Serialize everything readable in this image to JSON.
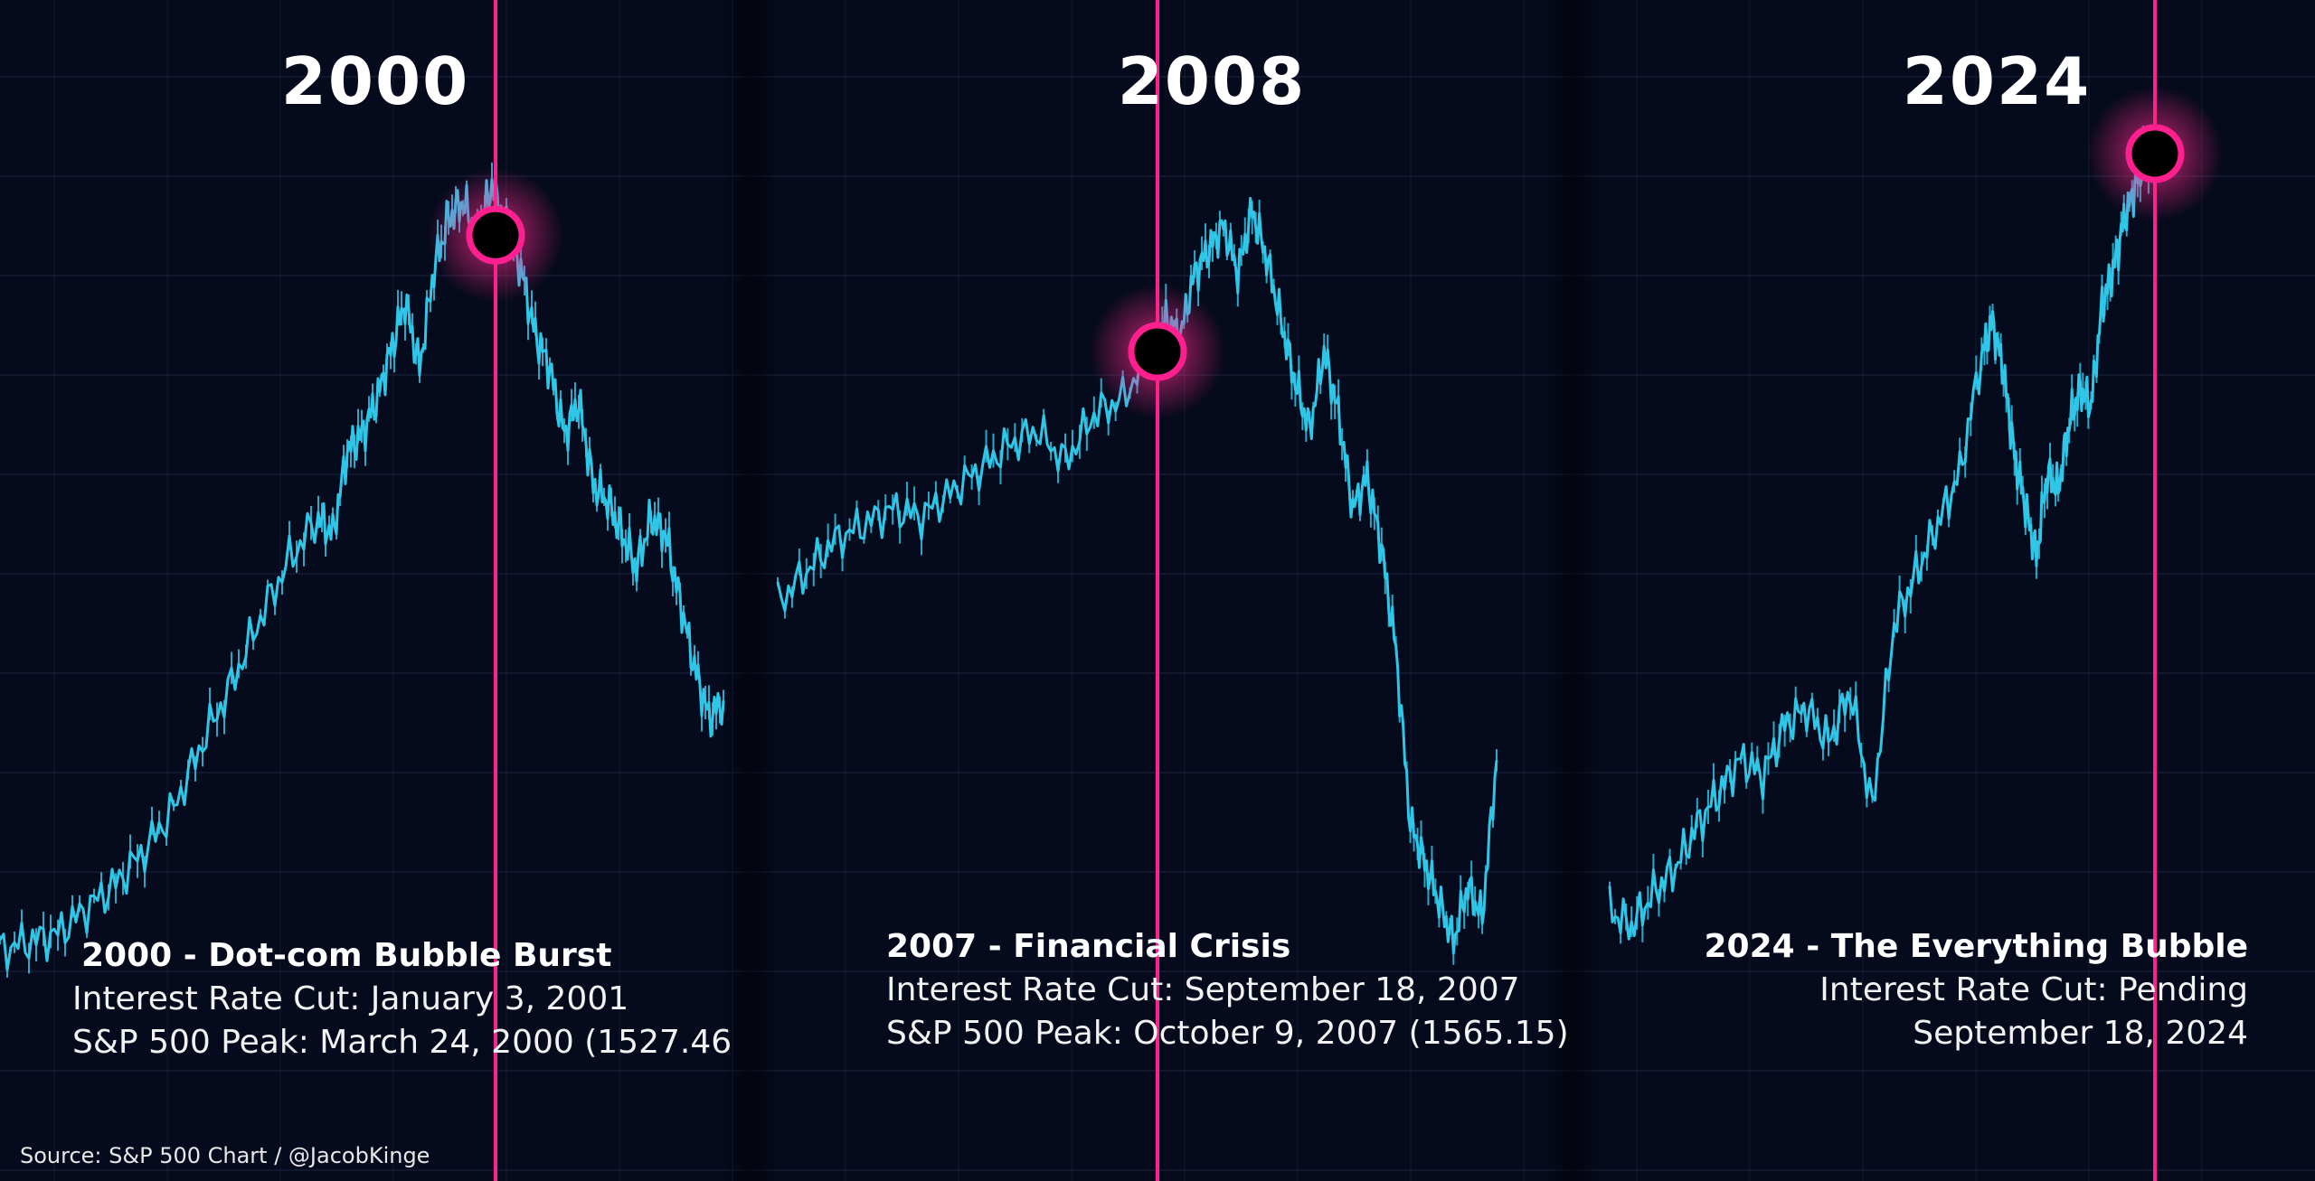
{
  "chart_data": [
    {
      "type": "line",
      "title": "2000",
      "caption_title": "2000 - Dot-com Bubble Burst",
      "caption_lines": [
        "Interest Rate Cut: January 3, 2001",
        "S&P 500 Peak: March 24, 2000 (1527.46"
      ],
      "marker": "peak",
      "series": [
        {
          "x": [
            0,
            0.04,
            0.08,
            0.12,
            0.16,
            0.2,
            0.24,
            0.28,
            0.32,
            0.36,
            0.4,
            0.44,
            0.46,
            0.48,
            0.5,
            0.52,
            0.54,
            0.56,
            0.58,
            0.6,
            0.62,
            0.64,
            0.66,
            0.68,
            0.7,
            0.72,
            0.74,
            0.76,
            0.78,
            0.8,
            0.82,
            0.84,
            0.86,
            0.88,
            0.9,
            0.92,
            0.94,
            0.96,
            0.98,
            1.0
          ],
          "values": [
            0.08,
            0.09,
            0.1,
            0.13,
            0.16,
            0.2,
            0.25,
            0.33,
            0.4,
            0.48,
            0.55,
            0.6,
            0.58,
            0.68,
            0.7,
            0.74,
            0.8,
            0.86,
            0.78,
            0.9,
            0.96,
            0.98,
            0.94,
            1.0,
            0.95,
            0.9,
            0.82,
            0.78,
            0.7,
            0.74,
            0.64,
            0.62,
            0.58,
            0.54,
            0.6,
            0.58,
            0.5,
            0.42,
            0.36,
            0.38
          ]
        }
      ],
      "cut_x": 0.66
    },
    {
      "type": "line",
      "title": "2008",
      "caption_title": "2007 - Financial Crisis",
      "caption_lines": [
        "Interest Rate Cut: September 18, 2007",
        "S&P 500 Peak: October 9, 2007 (1565.15)"
      ],
      "marker": "cut",
      "series": [
        {
          "x": [
            0,
            0.04,
            0.08,
            0.12,
            0.16,
            0.2,
            0.24,
            0.28,
            0.32,
            0.36,
            0.4,
            0.44,
            0.48,
            0.52,
            0.54,
            0.56,
            0.58,
            0.6,
            0.62,
            0.64,
            0.66,
            0.68,
            0.7,
            0.72,
            0.74,
            0.76,
            0.78,
            0.8,
            0.82,
            0.84,
            0.86,
            0.88,
            0.9,
            0.92,
            0.94,
            0.96,
            0.98,
            1.0
          ],
          "values": [
            0.48,
            0.52,
            0.56,
            0.58,
            0.6,
            0.59,
            0.62,
            0.65,
            0.68,
            0.7,
            0.66,
            0.72,
            0.74,
            0.8,
            0.84,
            0.82,
            0.9,
            0.93,
            0.96,
            0.9,
            0.98,
            0.92,
            0.84,
            0.76,
            0.7,
            0.8,
            0.72,
            0.6,
            0.64,
            0.55,
            0.42,
            0.2,
            0.15,
            0.1,
            0.05,
            0.12,
            0.08,
            0.28
          ]
        }
      ],
      "cut_x": 0.52
    },
    {
      "type": "line",
      "title": "2024",
      "caption_title": "2024 - The Everything Bubble",
      "caption_lines": [
        "Interest Rate Cut: Pending",
        "September 18, 2024"
      ],
      "marker": "current",
      "series": [
        {
          "x": [
            0,
            0.04,
            0.08,
            0.12,
            0.16,
            0.2,
            0.24,
            0.28,
            0.32,
            0.36,
            0.4,
            0.44,
            0.48,
            0.52,
            0.56,
            0.6,
            0.64,
            0.68,
            0.7,
            0.72,
            0.74,
            0.76,
            0.78,
            0.8,
            0.82,
            0.84,
            0.86,
            0.88,
            0.9,
            0.92,
            0.94,
            0.96,
            0.98,
            1.0
          ],
          "values": [
            0.1,
            0.08,
            0.12,
            0.15,
            0.2,
            0.24,
            0.28,
            0.26,
            0.32,
            0.34,
            0.3,
            0.36,
            0.22,
            0.44,
            0.5,
            0.56,
            0.62,
            0.76,
            0.8,
            0.74,
            0.64,
            0.58,
            0.52,
            0.62,
            0.6,
            0.68,
            0.72,
            0.7,
            0.82,
            0.86,
            0.92,
            0.96,
            1.0,
            1.0
          ]
        }
      ],
      "cut_x": 1.0
    }
  ],
  "source": "Source: S&P 500 Chart / @JacobKinge",
  "colors": {
    "background": "#050a1c",
    "line": "#2fc6e8",
    "marker": "#ff1f8e",
    "grid": "#1a2440"
  }
}
